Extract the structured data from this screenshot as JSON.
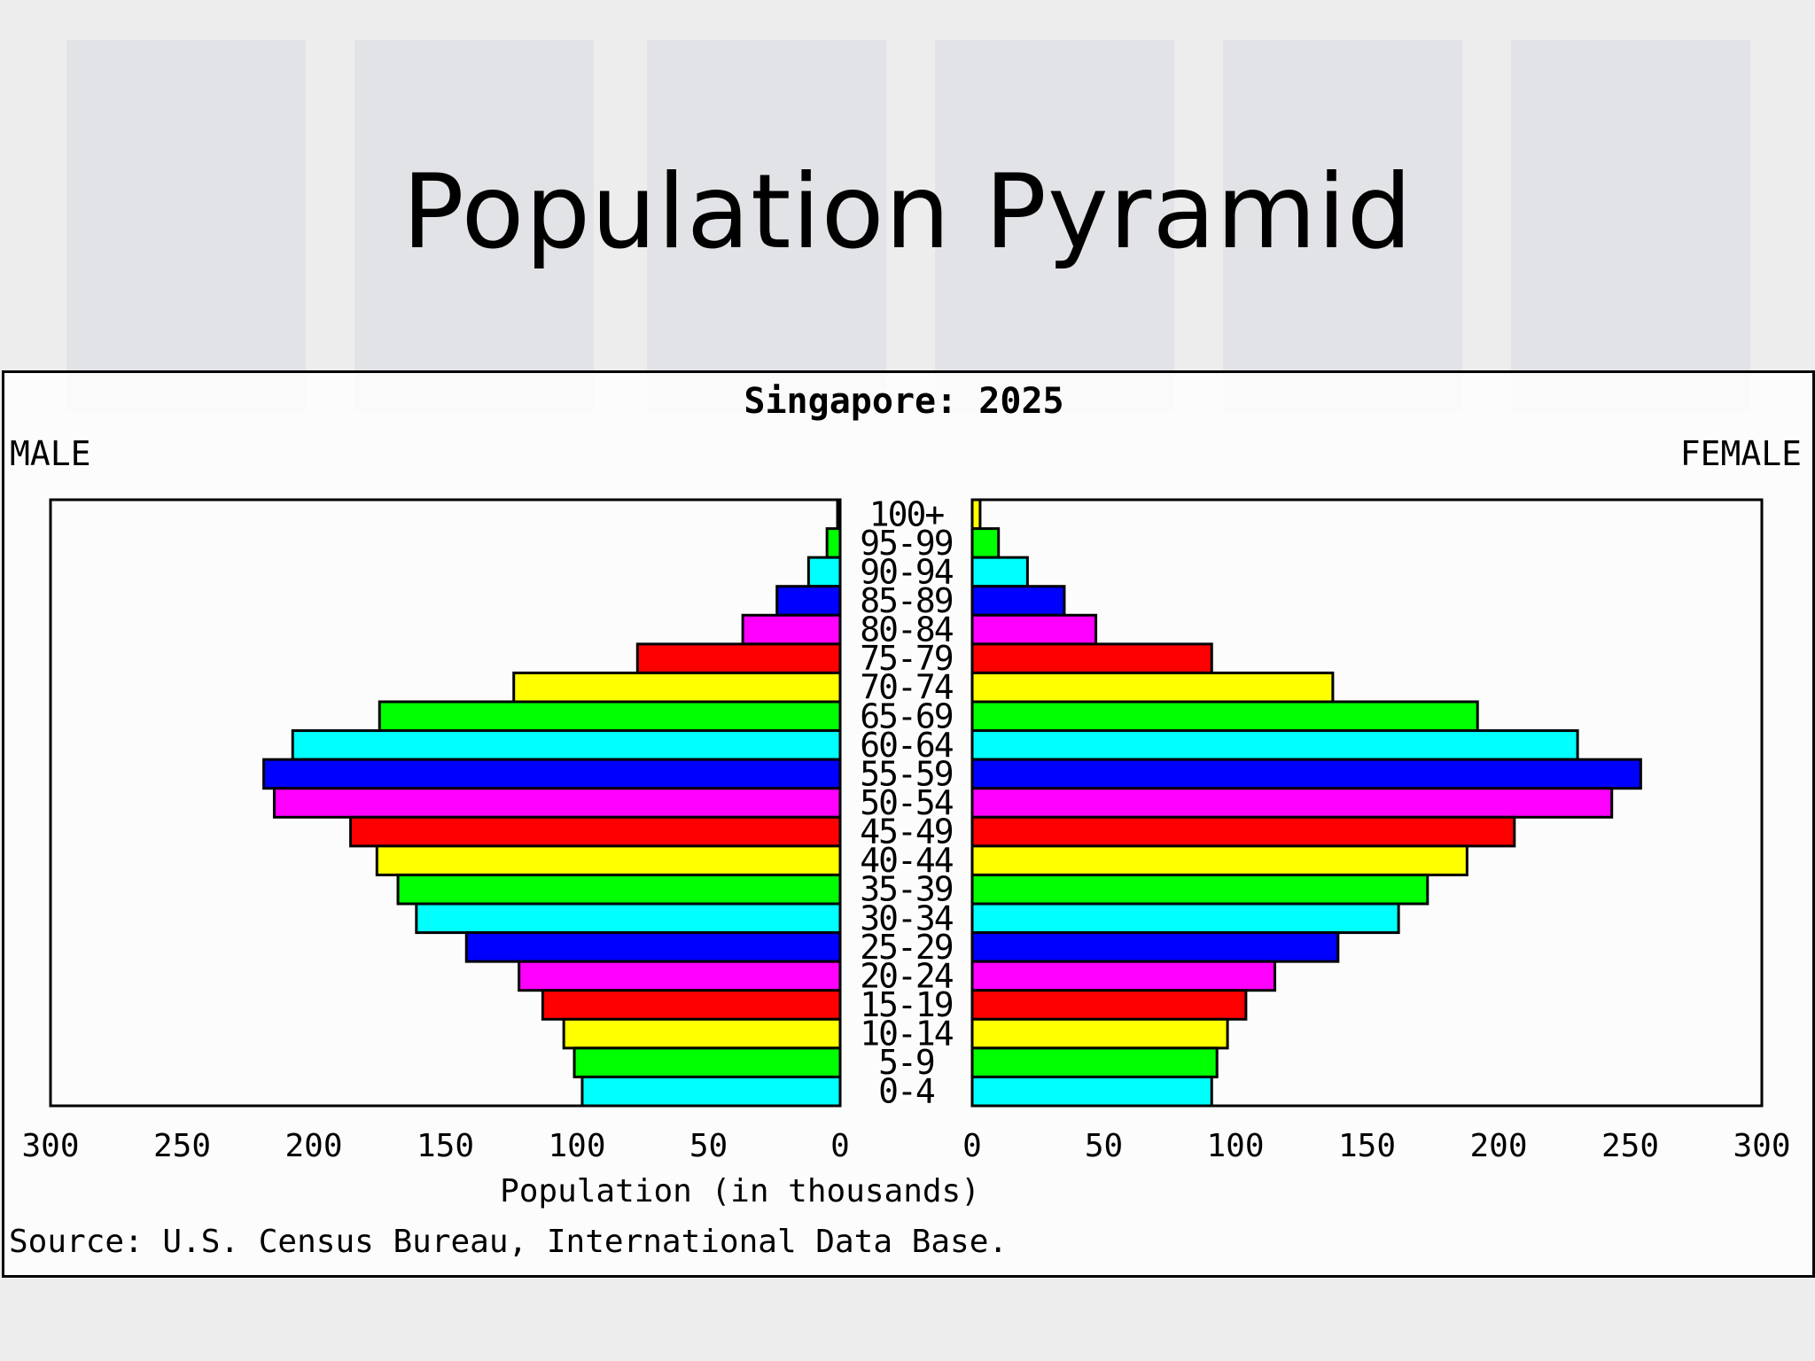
{
  "slide": {
    "title": "Population Pyramid"
  },
  "chart_data": {
    "type": "bar",
    "orientation": "horizontal",
    "title": "Singapore: 2025",
    "left_label": "MALE",
    "right_label": "FEMALE",
    "xlabel": "Population (in thousands)",
    "source": "Source: U.S. Census Bureau, International Data Base.",
    "xlim": [
      0,
      300
    ],
    "x_ticks": [
      300,
      250,
      200,
      150,
      100,
      50,
      0
    ],
    "categories": [
      "100+",
      "95-99",
      "90-94",
      "85-89",
      "80-84",
      "75-79",
      "70-74",
      "65-69",
      "60-64",
      "55-59",
      "50-54",
      "45-49",
      "40-44",
      "35-39",
      "30-34",
      "25-29",
      "20-24",
      "15-19",
      "10-14",
      "5-9",
      "0-4"
    ],
    "series": [
      {
        "name": "MALE",
        "values": [
          1,
          5,
          12,
          24,
          37,
          77,
          124,
          175,
          208,
          219,
          215,
          186,
          176,
          168,
          161,
          142,
          122,
          113,
          105,
          101,
          98
        ]
      },
      {
        "name": "FEMALE",
        "values": [
          3,
          10,
          21,
          35,
          47,
          91,
          137,
          192,
          230,
          254,
          243,
          206,
          188,
          173,
          162,
          139,
          115,
          104,
          97,
          93,
          91
        ]
      }
    ],
    "bar_colors": [
      "#ffff00",
      "#00ff00",
      "#00ffff",
      "#0000ff",
      "#ff00ff",
      "#ff0000"
    ],
    "grid": false,
    "legend": "none"
  }
}
